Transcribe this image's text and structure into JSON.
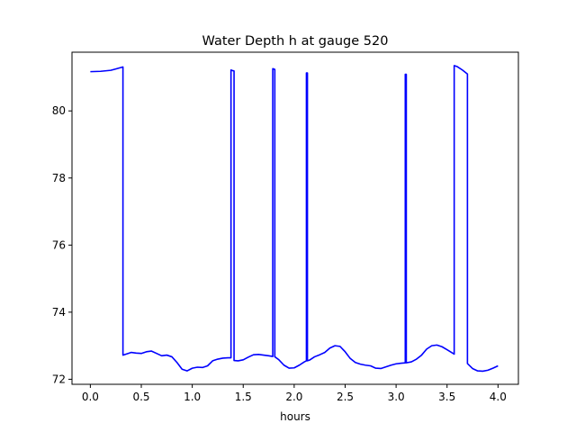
{
  "chart_data": {
    "type": "line",
    "title": "Water Depth h at gauge 520",
    "xlabel": "hours",
    "ylabel": "",
    "xlim": [
      -0.18,
      4.2
    ],
    "ylim": [
      71.85,
      81.75
    ],
    "x_ticks": [
      0.0,
      0.5,
      1.0,
      1.5,
      2.0,
      2.5,
      3.0,
      3.5,
      4.0
    ],
    "x_tick_labels": [
      "0.0",
      "0.5",
      "1.0",
      "1.5",
      "2.0",
      "2.5",
      "3.0",
      "3.5",
      "4.0"
    ],
    "y_ticks": [
      72,
      74,
      76,
      78,
      80
    ],
    "y_tick_labels": [
      "72",
      "74",
      "76",
      "78",
      "80"
    ],
    "grid": false,
    "legend": "none",
    "series": [
      {
        "color": "#0000ff",
        "x": [
          0.0,
          0.1,
          0.2,
          0.25,
          0.32,
          0.32,
          0.33,
          0.4,
          0.45,
          0.5,
          0.55,
          0.6,
          0.65,
          0.7,
          0.75,
          0.8,
          0.85,
          0.9,
          0.95,
          1.0,
          1.05,
          1.1,
          1.15,
          1.2,
          1.25,
          1.3,
          1.35,
          1.38,
          1.38,
          1.395,
          1.4,
          1.41,
          1.41,
          1.45,
          1.5,
          1.55,
          1.6,
          1.65,
          1.7,
          1.75,
          1.79,
          1.79,
          1.805,
          1.81,
          1.81,
          1.85,
          1.9,
          1.95,
          2.0,
          2.05,
          2.1,
          2.12,
          2.12,
          2.13,
          2.13,
          2.15,
          2.2,
          2.25,
          2.3,
          2.35,
          2.4,
          2.45,
          2.5,
          2.55,
          2.6,
          2.65,
          2.7,
          2.75,
          2.8,
          2.85,
          2.9,
          2.95,
          3.0,
          3.05,
          3.09,
          3.09,
          3.1,
          3.1,
          3.15,
          3.2,
          3.25,
          3.3,
          3.35,
          3.4,
          3.45,
          3.5,
          3.57,
          3.57,
          3.6,
          3.65,
          3.7,
          3.7,
          3.75,
          3.8,
          3.85,
          3.9,
          3.95,
          4.0
        ],
        "y": [
          81.17,
          81.18,
          81.21,
          81.25,
          81.31,
          72.72,
          72.73,
          72.8,
          72.78,
          72.77,
          72.82,
          72.84,
          72.77,
          72.7,
          72.72,
          72.67,
          72.5,
          72.3,
          72.25,
          72.33,
          72.36,
          72.35,
          72.4,
          72.55,
          72.6,
          72.63,
          72.64,
          72.64,
          81.22,
          81.2,
          81.2,
          81.19,
          72.56,
          72.55,
          72.58,
          72.66,
          72.73,
          72.74,
          72.72,
          72.7,
          72.68,
          81.26,
          81.24,
          81.24,
          72.67,
          72.58,
          72.42,
          72.33,
          72.34,
          72.42,
          72.52,
          72.55,
          81.13,
          81.13,
          72.55,
          72.57,
          72.67,
          72.73,
          72.8,
          72.93,
          73.0,
          72.98,
          72.82,
          72.62,
          72.5,
          72.45,
          72.42,
          72.4,
          72.33,
          72.32,
          72.37,
          72.42,
          72.46,
          72.48,
          72.49,
          81.09,
          81.09,
          72.49,
          72.52,
          72.6,
          72.72,
          72.9,
          73.0,
          73.02,
          72.97,
          72.88,
          72.75,
          81.35,
          81.32,
          81.22,
          81.1,
          72.47,
          72.32,
          72.25,
          72.24,
          72.27,
          72.33,
          72.4
        ]
      }
    ]
  }
}
